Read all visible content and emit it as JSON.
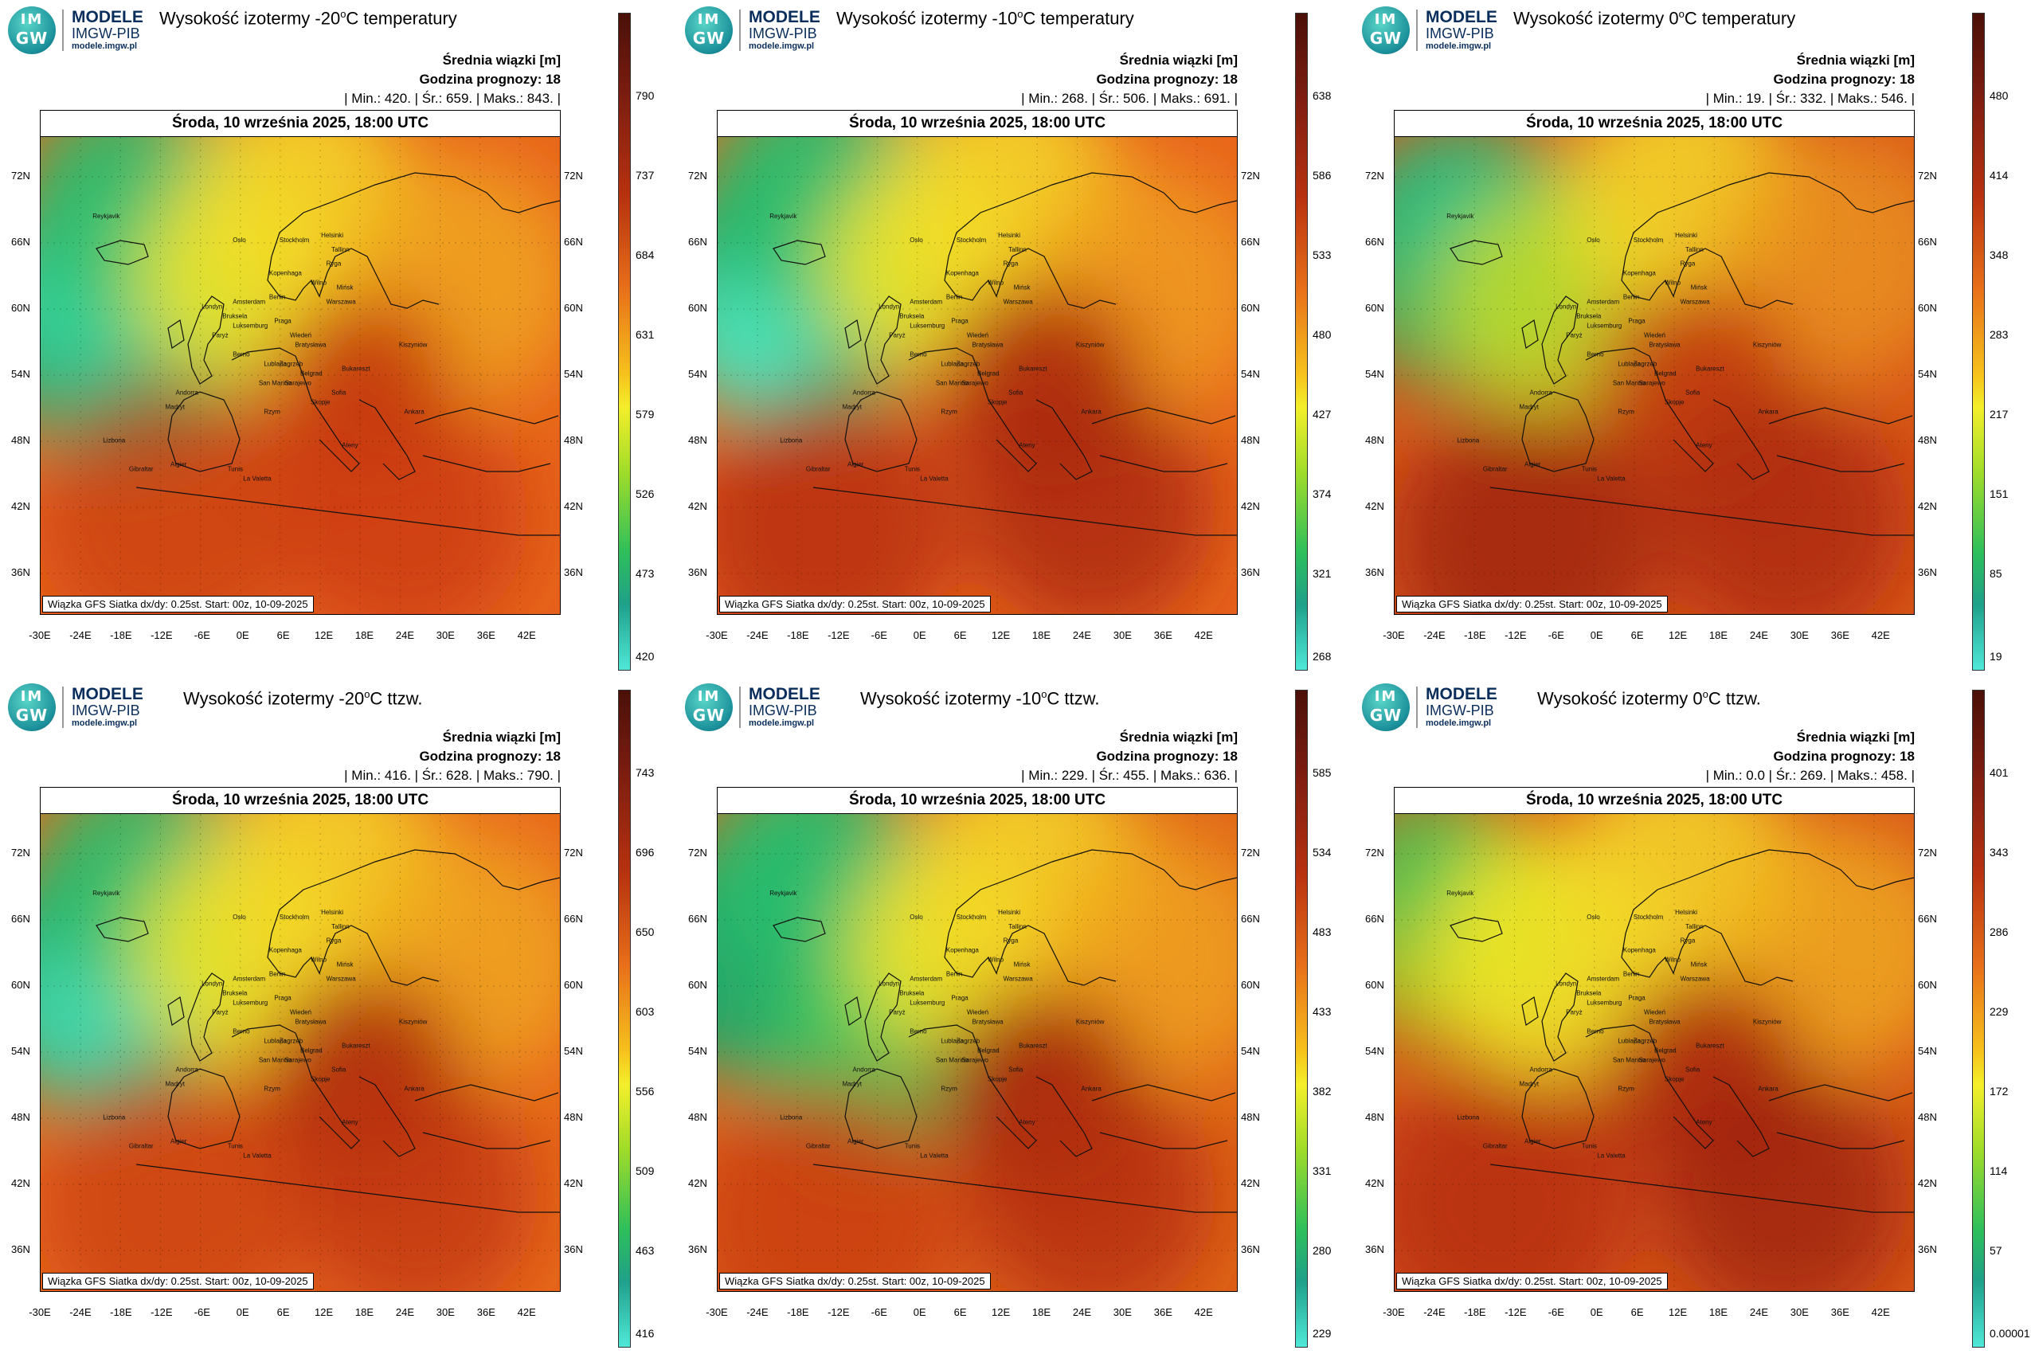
{
  "logo": {
    "im": "IM",
    "gw": "GW",
    "line1": "MODELE",
    "line2": "IMGW-PIB",
    "line3": "modele.imgw.pl"
  },
  "shared": {
    "date": "Środa, 10 września 2025, 18:00 UTC",
    "avg_label": "Średnia wiązki [m]",
    "forecast_hour": "Godzina prognozy: 18",
    "footer": "Wiązka GFS Siatka dx/dy: 0.25st. Start: 00z, 10-09-2025",
    "lat_labels": [
      "72N",
      "66N",
      "60N",
      "54N",
      "48N",
      "42N",
      "36N"
    ],
    "lon_labels": [
      "-30E",
      "-24E",
      "-18E",
      "-12E",
      "-6E",
      "0E",
      "6E",
      "12E",
      "18E",
      "24E",
      "30E",
      "36E",
      "42E"
    ],
    "cities": [
      "Oslo",
      "Stockholm",
      "Helsinki",
      "Tallinn",
      "Ryga",
      "Wilno",
      "Mińsk",
      "Kopenhaga",
      "Amsterdam",
      "Berlin",
      "Warszawa",
      "Londyn",
      "Bruksela",
      "Luksemburg",
      "Paryż",
      "Praga",
      "Wiedeń",
      "Bratysława",
      "Kiszyniów",
      "Berno",
      "Lublana",
      "Zagrzeb",
      "Belgrad",
      "Bukareszt",
      "Sarajewo",
      "San Marino",
      "Sofia",
      "Skopje",
      "Rzym",
      "Andorra",
      "Madryt",
      "Lizbona",
      "Gibraltar",
      "Algier",
      "Tunis",
      "La Valetta",
      "Ankara",
      "Ateny",
      "Reykjavik"
    ]
  },
  "panels": [
    {
      "title_pre": "Wysokość izotermy -20",
      "title_sup": "o",
      "title_post": "C temperatury",
      "stats": "| Min.:    420. | Śr.:    659. | Maks.:    843. |",
      "cbar_ticks": [
        "790",
        "737",
        "684",
        "631",
        "579",
        "526",
        "473",
        "420"
      ],
      "palette": "p1"
    },
    {
      "title_pre": "Wysokość izotermy -10",
      "title_sup": "o",
      "title_post": "C temperatury",
      "stats": "| Min.:    268. | Śr.:    506. | Maks.:    691. |",
      "cbar_ticks": [
        "638",
        "586",
        "533",
        "480",
        "427",
        "374",
        "321",
        "268"
      ],
      "palette": "p2"
    },
    {
      "title_pre": "Wysokość izotermy 0",
      "title_sup": "o",
      "title_post": "C temperatury",
      "stats": "| Min.:    19. | Śr.:    332. | Maks.:    546. |",
      "cbar_ticks": [
        "480",
        "414",
        "348",
        "283",
        "217",
        "151",
        "85",
        "19"
      ],
      "palette": "p3"
    },
    {
      "title_pre": "Wysokość izotermy -20",
      "title_sup": "o",
      "title_post": "C ttzw.",
      "stats": "| Min.:    416. | Śr.:    628. | Maks.:    790. |",
      "cbar_ticks": [
        "743",
        "696",
        "650",
        "603",
        "556",
        "509",
        "463",
        "416"
      ],
      "palette": "p4"
    },
    {
      "title_pre": "Wysokość izotermy -10",
      "title_sup": "o",
      "title_post": "C ttzw.",
      "stats": "| Min.:    229. | Śr.:    455. | Maks.:    636. |",
      "cbar_ticks": [
        "585",
        "534",
        "483",
        "433",
        "382",
        "331",
        "280",
        "229"
      ],
      "palette": "p5"
    },
    {
      "title_pre": "Wysokość izotermy 0",
      "title_sup": "o",
      "title_post": "C ttzw.",
      "stats": "| Min.:    0.0 | Śr.:    269. | Maks.:    458. |",
      "cbar_ticks": [
        "401",
        "343",
        "286",
        "229",
        "172",
        "114",
        "57",
        "0.00001"
      ],
      "palette": "p6"
    }
  ]
}
